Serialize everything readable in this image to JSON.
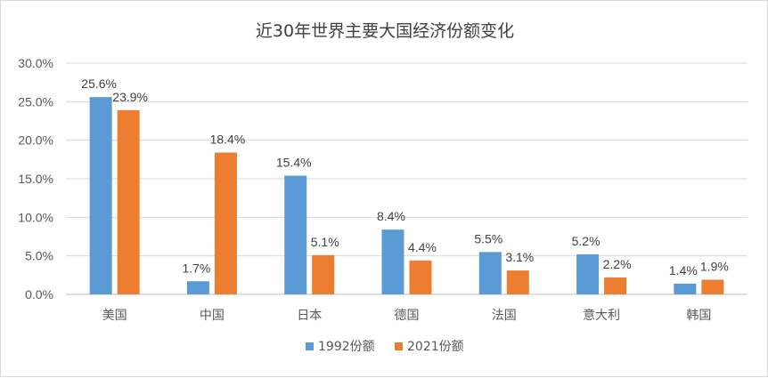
{
  "chart_data": {
    "type": "bar",
    "title": "近30年世界主要大国经济份额变化",
    "categories": [
      "美国",
      "中国",
      "日本",
      "德国",
      "法国",
      "意大利",
      "韩国"
    ],
    "series": [
      {
        "name": "1992份额",
        "color": "#5B9BD5",
        "values": [
          25.6,
          1.7,
          15.4,
          8.4,
          5.5,
          5.2,
          1.4
        ],
        "labels": [
          "25.6%",
          "1.7%",
          "15.4%",
          "8.4%",
          "5.5%",
          "5.2%",
          "1.4%"
        ]
      },
      {
        "name": "2021份额",
        "color": "#ED7D31",
        "values": [
          23.9,
          18.4,
          5.1,
          4.4,
          3.1,
          2.2,
          1.9
        ],
        "labels": [
          "23.9%",
          "18.4%",
          "5.1%",
          "4.4%",
          "3.1%",
          "2.2%",
          "1.9%"
        ]
      }
    ],
    "yticks": [
      "0.0%",
      "5.0%",
      "10.0%",
      "15.0%",
      "20.0%",
      "25.0%",
      "30.0%"
    ],
    "ylim": [
      0,
      30
    ],
    "grid": true,
    "legend_position": "bottom"
  }
}
